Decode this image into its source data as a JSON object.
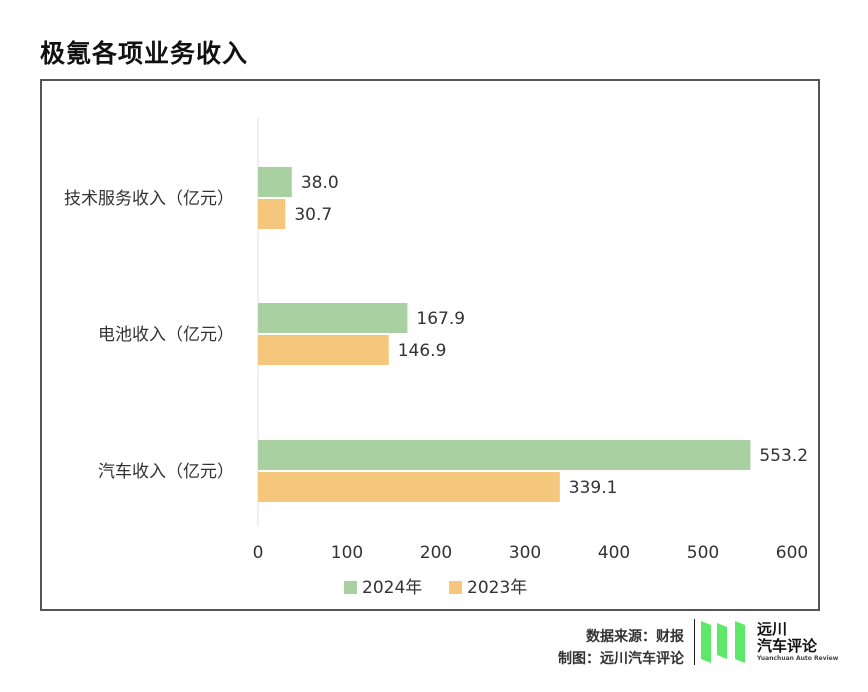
{
  "title": "极氪各项业务收入",
  "chart_data": {
    "type": "bar",
    "orientation": "horizontal",
    "categories": [
      "技术服务收入（亿元）",
      "电池收入（亿元）",
      "汽车收入（亿元）"
    ],
    "series": [
      {
        "name": "2024年",
        "values": [
          38.0,
          167.9,
          553.2
        ],
        "color": "#a8d0a0"
      },
      {
        "name": "2023年",
        "values": [
          30.7,
          146.9,
          339.1
        ],
        "color": "#f5c77c"
      }
    ],
    "xlim": [
      0,
      600
    ],
    "xticks": [
      0,
      100,
      200,
      300,
      400,
      500,
      600
    ],
    "legend_position": "bottom-center",
    "grid": false
  },
  "footer": {
    "source": "数据来源：财报",
    "author": "制图：远川汽车评论"
  },
  "logo": {
    "name_line1": "远川",
    "name_line2": "汽车评论",
    "english": "Yuanchuan Auto Review",
    "color": "#5ee86a"
  }
}
